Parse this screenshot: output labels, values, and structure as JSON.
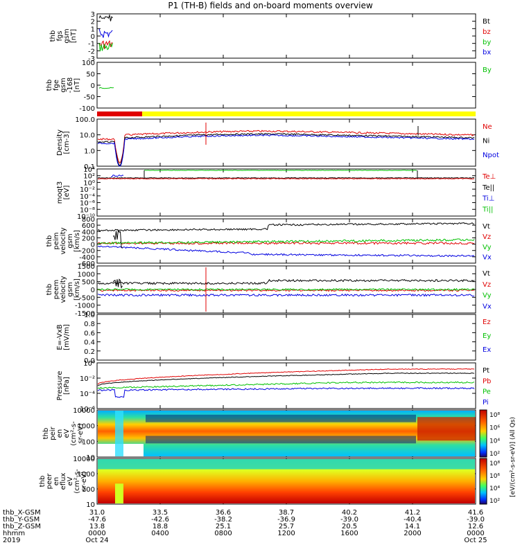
{
  "title": "P1 (TH-B) fields and on-board moments overview",
  "colors": {
    "black": "#000000",
    "red": "#e00000",
    "green": "#00c000",
    "blue": "#0000e0",
    "yellow": "#ffff00",
    "bar_red": "#e00000"
  },
  "chart_data": {
    "type": "multi-panel time series",
    "x_time_ticks": [
      "0000",
      "0400",
      "0800",
      "1200",
      "1600",
      "2000",
      "0000"
    ],
    "x_date_ticks": [
      "Oct 24",
      "",
      "",
      "",
      "",
      "",
      "Oct 25"
    ],
    "year": "2019",
    "orbit_rows": [
      {
        "label": "thb_X-GSM",
        "values": [
          "31.0",
          "33.5",
          "36.6",
          "38.7",
          "40.2",
          "41.2",
          "41.6"
        ]
      },
      {
        "label": "thb_Y-GSM",
        "values": [
          "-47.6",
          "-42.6",
          "-38.2",
          "-36.9",
          "-39.0",
          "-40.4",
          "-39.0"
        ]
      },
      {
        "label": "thb_Z-GSM",
        "values": [
          "13.8",
          "18.8",
          "25.1",
          "25.7",
          "20.5",
          "14.1",
          "12.6"
        ]
      },
      {
        "label": "hhmm",
        "values": [
          "0000",
          "0400",
          "0800",
          "1200",
          "1600",
          "2000",
          "0000"
        ]
      },
      {
        "label": "2019",
        "values": [
          "Oct 24",
          "",
          "",
          "",
          "",
          "",
          "Oct 25"
        ]
      }
    ],
    "panels": [
      {
        "id": "fgs",
        "ylabel": [
          "thb",
          "fgs",
          "gsm",
          "[nT]"
        ],
        "yticks": [
          "3",
          "2",
          "1",
          "0",
          "-1",
          "-2",
          "-3"
        ],
        "legend": [
          {
            "name": "Bt",
            "color": "#000000"
          },
          {
            "name": "bz",
            "color": "#e00000"
          },
          {
            "name": "by",
            "color": "#00c000"
          },
          {
            "name": "bx",
            "color": "#0000e0"
          }
        ]
      },
      {
        "id": "fge",
        "ylabel": [
          "thb",
          "fge",
          "gsm",
          "-168",
          "[nT]"
        ],
        "yticks": [
          "100",
          "50",
          "0",
          "-50",
          "-100"
        ],
        "legend": [
          {
            "name": "By",
            "color": "#00c000"
          }
        ]
      },
      {
        "id": "density",
        "ylabel": [
          "Density",
          "[cm-3]"
        ],
        "yticks": [
          "100.0",
          "10.0",
          "1.0",
          "0.1"
        ],
        "legend": [
          {
            "name": "Ne",
            "color": "#e00000"
          },
          {
            "name": "Ni",
            "color": "#000000"
          },
          {
            "name": "Npot",
            "color": "#0000e0"
          }
        ]
      },
      {
        "id": "temperature",
        "ylabel": [
          "moqt3",
          "[eV]"
        ],
        "yticks": [
          "10⁴",
          "10²",
          "10⁰",
          "10⁻²",
          "10⁻⁴",
          "10⁻⁶",
          "10⁻⁸",
          "10⁻¹⁰"
        ],
        "legend": [
          {
            "name": "Te⊥",
            "color": "#e00000"
          },
          {
            "name": "Te||",
            "color": "#000000"
          },
          {
            "name": "Ti⊥",
            "color": "#0000e0"
          },
          {
            "name": "Ti||",
            "color": "#00c000"
          }
        ]
      },
      {
        "id": "peim_velocity",
        "ylabel": [
          "thb",
          "peim",
          "velocity",
          "gsm",
          "[km/s]"
        ],
        "yticks": [
          "800",
          "600",
          "400",
          "200",
          "0",
          "-200",
          "-400",
          "-600"
        ],
        "legend": [
          {
            "name": "Vt",
            "color": "#000000"
          },
          {
            "name": "Vz",
            "color": "#e00000"
          },
          {
            "name": "Vy",
            "color": "#00c000"
          },
          {
            "name": "Vx",
            "color": "#0000e0"
          }
        ]
      },
      {
        "id": "peem_velocity",
        "ylabel": [
          "thb",
          "peem",
          "velocity",
          "gsm",
          "[km/s]"
        ],
        "yticks": [
          "1500",
          "1000",
          "500",
          "0",
          "-500",
          "-1000",
          "-1500"
        ],
        "legend": [
          {
            "name": "Vt",
            "color": "#000000"
          },
          {
            "name": "Vz",
            "color": "#e00000"
          },
          {
            "name": "Vy",
            "color": "#00c000"
          },
          {
            "name": "Vx",
            "color": "#0000e0"
          }
        ]
      },
      {
        "id": "efield",
        "ylabel": [
          "E=-VxB",
          "[mV/m]"
        ],
        "yticks": [
          "1.0",
          "0.8",
          "0.6",
          "0.4",
          "0.2",
          "0.0"
        ],
        "legend": [
          {
            "name": "Ez",
            "color": "#e00000"
          },
          {
            "name": "Ey",
            "color": "#00c000"
          },
          {
            "name": "Ex",
            "color": "#0000e0"
          }
        ]
      },
      {
        "id": "pressure",
        "ylabel": [
          "Pressure",
          "[nPa]"
        ],
        "yticks": [
          "10⁰",
          "10⁻²",
          "10⁻⁴",
          "10⁻⁶"
        ],
        "legend": [
          {
            "name": "Pt",
            "color": "#000000"
          },
          {
            "name": "Pb",
            "color": "#e00000"
          },
          {
            "name": "Pe",
            "color": "#00c000"
          },
          {
            "name": "Pi",
            "color": "#0000e0"
          }
        ]
      },
      {
        "id": "peir_spec",
        "ylabel": [
          "thb",
          "peir",
          "en",
          "eV",
          "(cm²-s-",
          "sr-eV)"
        ],
        "yticks": [
          "10000",
          "1000",
          "100",
          "10"
        ]
      },
      {
        "id": "peer_spec",
        "ylabel": [
          "thb",
          "peer",
          "en",
          "eflux",
          "eV",
          "(cm²-s-",
          "sr-eV)"
        ],
        "yticks": [
          "10000",
          "1000",
          "100",
          "10"
        ]
      }
    ],
    "colorbar_ion": {
      "ticks": [
        "10⁸",
        "10⁶",
        "10⁴",
        "10²"
      ],
      "label": "[eV/(cm²-s-sr-eV)] (All Qs)"
    },
    "colorbar_electron": {
      "ticks": [
        "10⁸",
        "10⁶",
        "10⁴",
        "10²"
      ],
      "label": "[eV/(cm²-s-sr-eV)] (All Qs)"
    }
  }
}
